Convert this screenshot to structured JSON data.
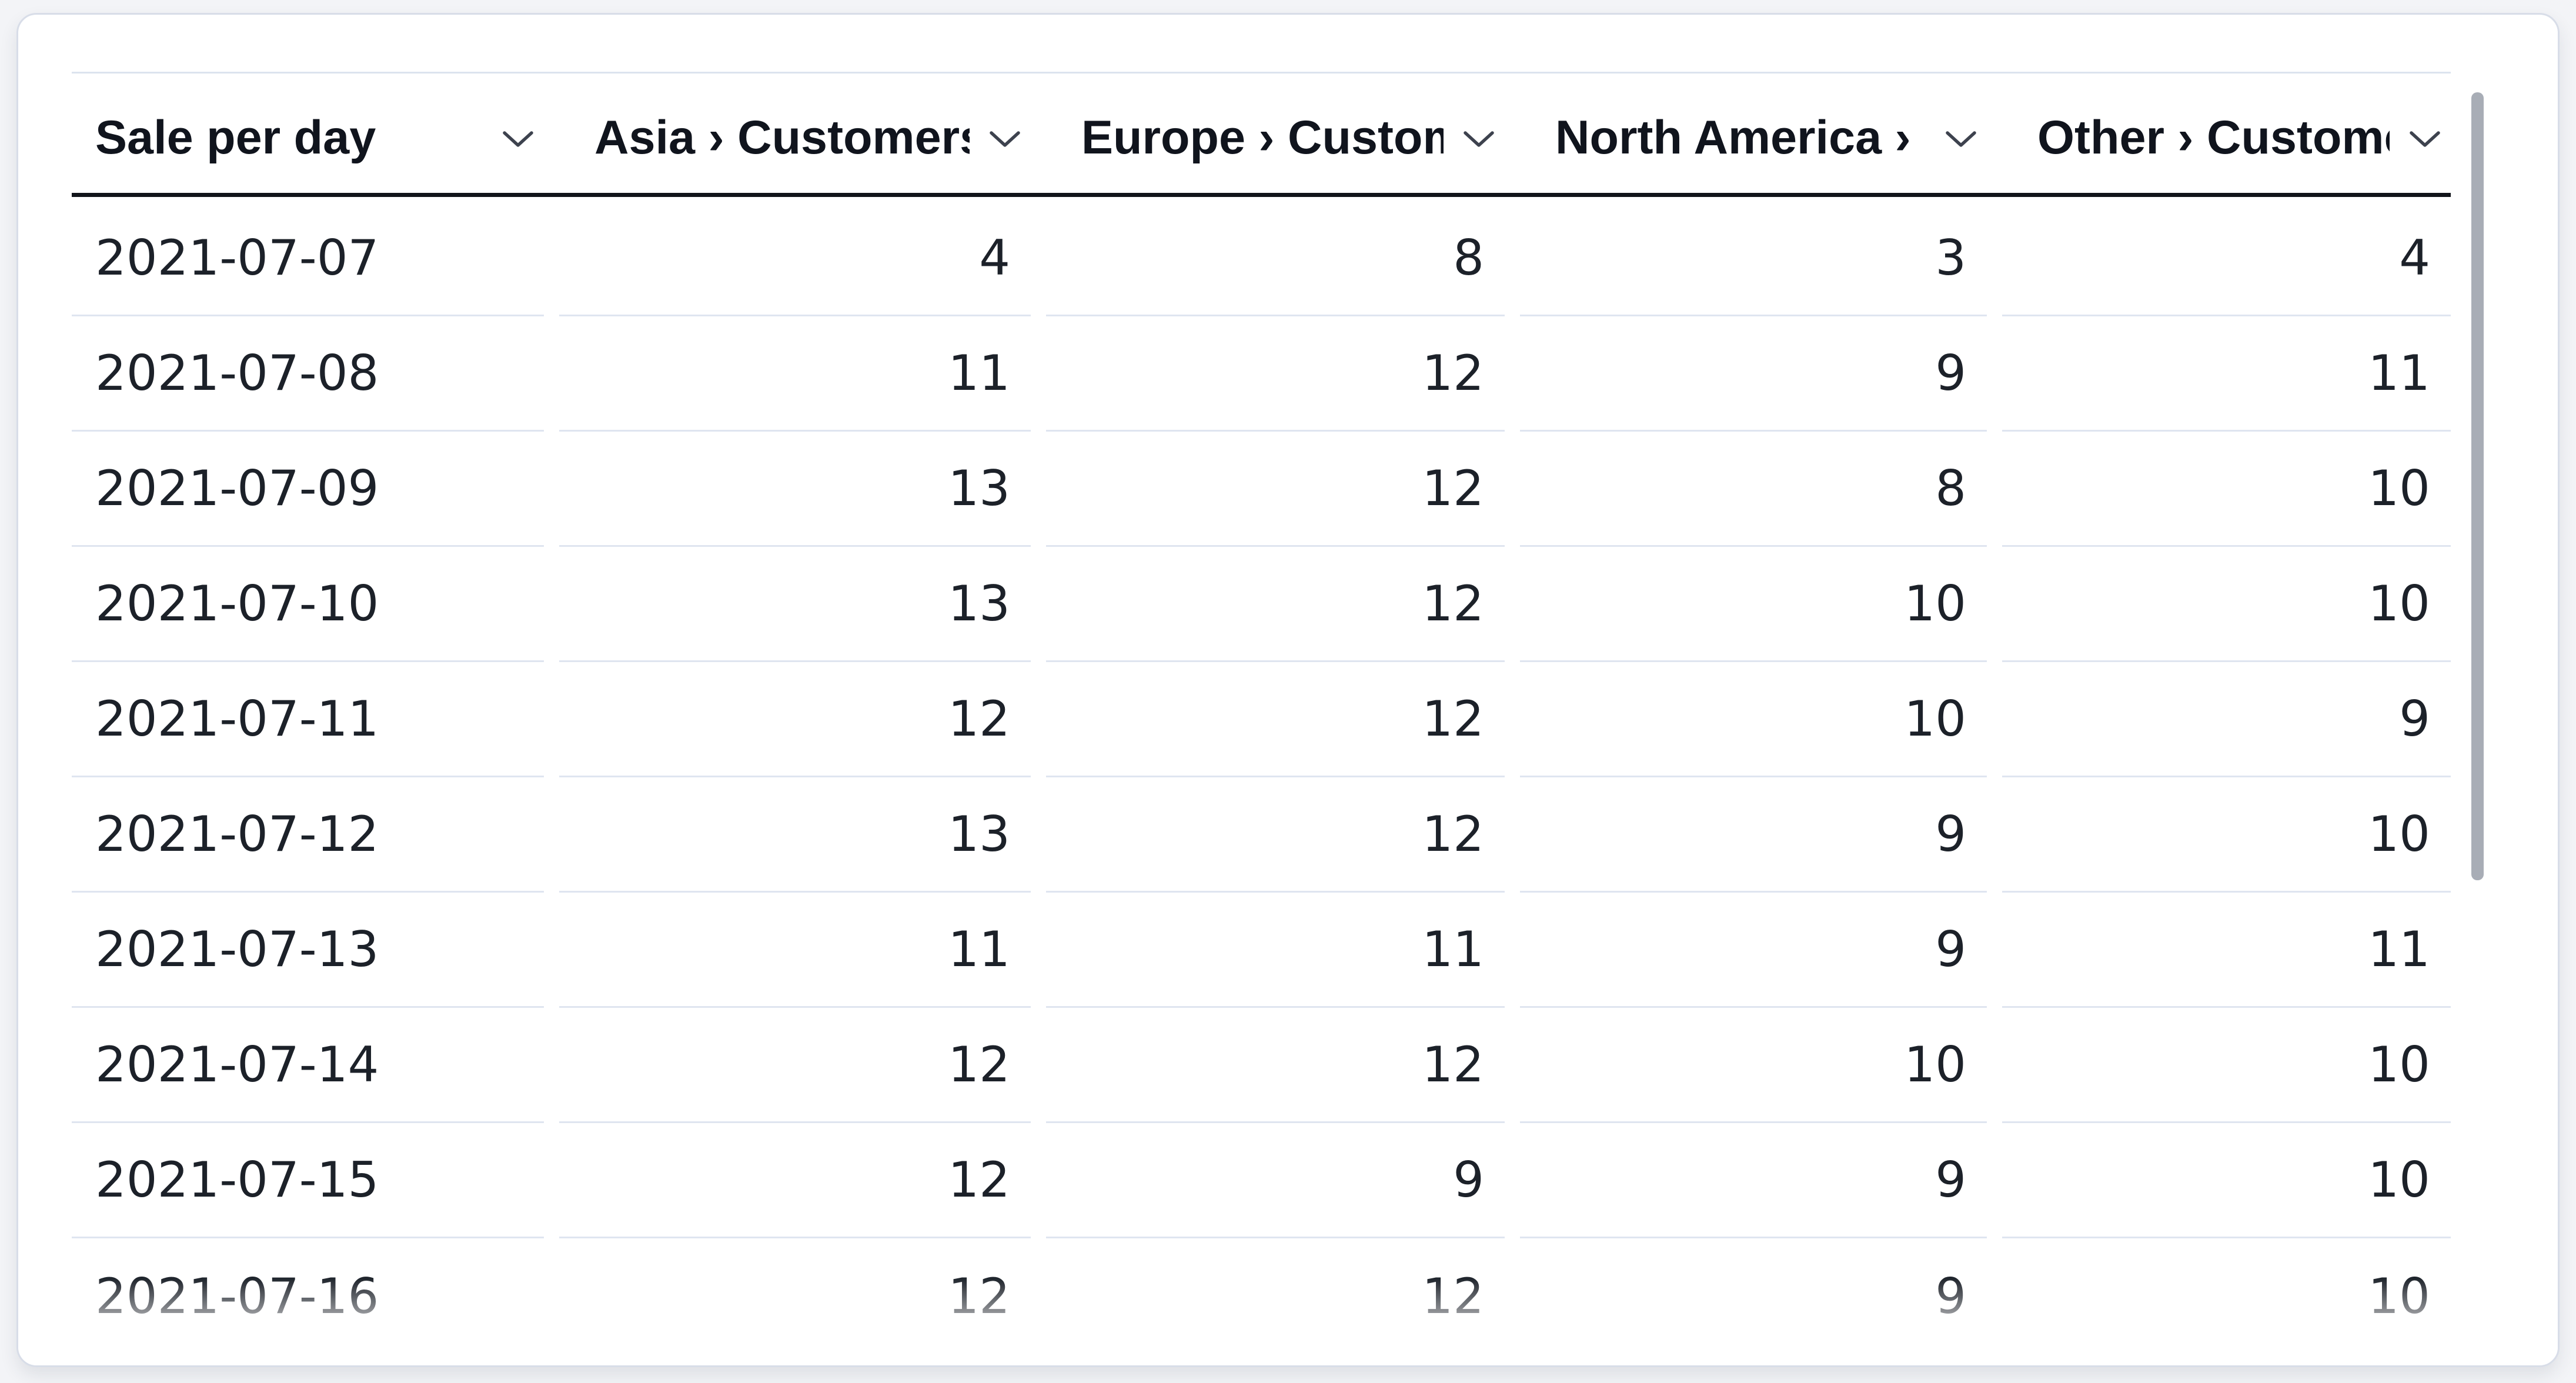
{
  "table": {
    "title_column": "Sale per day",
    "columns": [
      {
        "label": "Sale per day",
        "align": "left"
      },
      {
        "label": "Asia › Customers",
        "align": "right"
      },
      {
        "label": "Europe › Customers",
        "align": "right"
      },
      {
        "label": "North America › Customers",
        "align": "right"
      },
      {
        "label": "Other › Customers",
        "align": "right"
      }
    ],
    "rows": [
      [
        "2021-07-07",
        "4",
        "8",
        "3",
        "4"
      ],
      [
        "2021-07-08",
        "11",
        "12",
        "9",
        "11"
      ],
      [
        "2021-07-09",
        "13",
        "12",
        "8",
        "10"
      ],
      [
        "2021-07-10",
        "13",
        "12",
        "10",
        "10"
      ],
      [
        "2021-07-11",
        "12",
        "12",
        "10",
        "9"
      ],
      [
        "2021-07-12",
        "13",
        "12",
        "9",
        "10"
      ],
      [
        "2021-07-13",
        "11",
        "11",
        "9",
        "11"
      ],
      [
        "2021-07-14",
        "12",
        "12",
        "10",
        "10"
      ],
      [
        "2021-07-15",
        "12",
        "9",
        "9",
        "10"
      ],
      [
        "2021-07-16",
        "12",
        "12",
        "9",
        "10"
      ]
    ],
    "header_icon": "chevron-down-icon"
  },
  "scrollbar": {
    "orientation": "vertical",
    "thumb_color": "#a8adb6"
  },
  "colors": {
    "header_underline": "#11141a",
    "row_separator": "#dfe5f0",
    "header_text": "#10141d",
    "cell_text": "#1c2129",
    "card_border": "#d8dde8",
    "page_background": "#f3f4f7",
    "chevron": "#3d424e"
  }
}
